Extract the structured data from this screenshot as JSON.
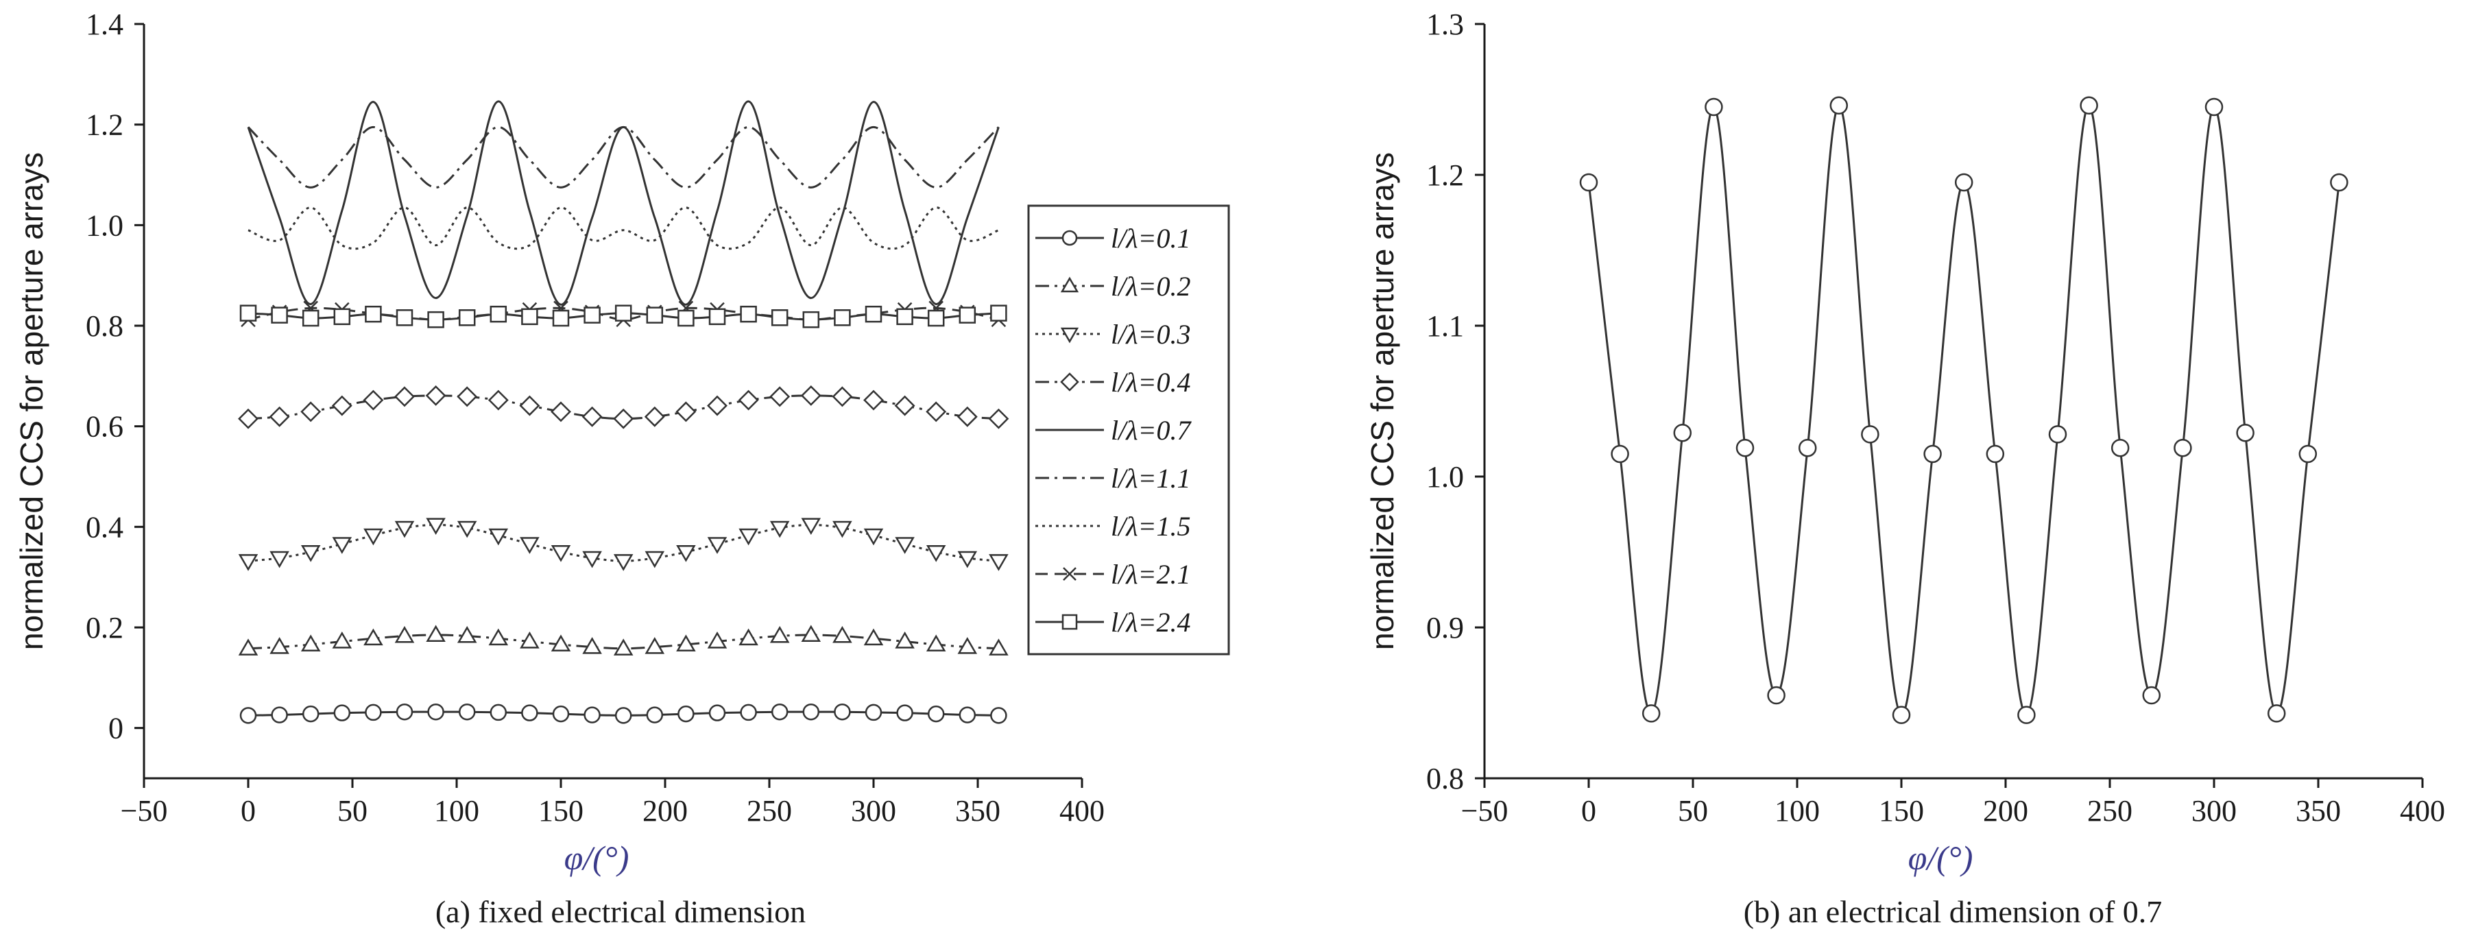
{
  "chart_data": [
    {
      "type": "line",
      "caption": "(a) fixed electrical dimension",
      "xlabel": "φ/(°)",
      "ylabel": "normalized CCS for aperture arrays",
      "xlim": [
        -50,
        400
      ],
      "ylim": [
        -0.1,
        1.4
      ],
      "xticks": [
        -50,
        0,
        50,
        100,
        150,
        200,
        250,
        300,
        350,
        400
      ],
      "yticks": [
        0,
        0.2,
        0.4,
        0.6,
        0.8,
        1.0,
        1.2,
        1.4
      ],
      "ytick_labels": [
        "0",
        "0.2",
        "0.4",
        "0.6",
        "0.8",
        "1.0",
        "1.2",
        "1.4"
      ],
      "legend_position": "right",
      "x": [
        0,
        15,
        30,
        45,
        60,
        75,
        90,
        105,
        120,
        135,
        150,
        165,
        180,
        195,
        210,
        225,
        240,
        255,
        270,
        285,
        300,
        315,
        330,
        345,
        360
      ],
      "series": [
        {
          "name": "l/λ=0.1",
          "marker": "circle",
          "dash": "solid",
          "values": [
            0.025,
            0.026,
            0.028,
            0.03,
            0.031,
            0.032,
            0.032,
            0.032,
            0.031,
            0.03,
            0.028,
            0.026,
            0.025,
            0.026,
            0.028,
            0.03,
            0.031,
            0.032,
            0.032,
            0.032,
            0.031,
            0.03,
            0.028,
            0.026,
            0.025
          ]
        },
        {
          "name": "l/λ=0.2",
          "marker": "triangle-up",
          "dash": "dashdot",
          "values": [
            0.158,
            0.161,
            0.166,
            0.172,
            0.178,
            0.183,
            0.185,
            0.183,
            0.178,
            0.172,
            0.166,
            0.161,
            0.158,
            0.161,
            0.166,
            0.172,
            0.178,
            0.183,
            0.185,
            0.183,
            0.178,
            0.172,
            0.166,
            0.161,
            0.158
          ]
        },
        {
          "name": "l/λ=0.3",
          "marker": "triangle-down",
          "dash": "dotted",
          "values": [
            0.332,
            0.338,
            0.35,
            0.366,
            0.383,
            0.398,
            0.404,
            0.398,
            0.383,
            0.366,
            0.35,
            0.338,
            0.332,
            0.338,
            0.35,
            0.366,
            0.383,
            0.398,
            0.404,
            0.398,
            0.383,
            0.366,
            0.35,
            0.338,
            0.332
          ]
        },
        {
          "name": "l/λ=0.4",
          "marker": "diamond",
          "dash": "dashdot",
          "values": [
            0.615,
            0.619,
            0.629,
            0.641,
            0.652,
            0.659,
            0.661,
            0.659,
            0.652,
            0.641,
            0.629,
            0.619,
            0.615,
            0.619,
            0.629,
            0.641,
            0.652,
            0.659,
            0.661,
            0.659,
            0.652,
            0.641,
            0.629,
            0.619,
            0.615
          ]
        },
        {
          "name": "l/λ=0.7",
          "marker": "none",
          "dash": "solid",
          "values": [
            1.195,
            1.015,
            0.843,
            1.029,
            1.245,
            1.019,
            0.855,
            1.019,
            1.246,
            1.028,
            0.842,
            1.015,
            1.195,
            1.015,
            0.842,
            1.028,
            1.246,
            1.019,
            0.855,
            1.019,
            1.245,
            1.029,
            0.843,
            1.015,
            1.195
          ]
        },
        {
          "name": "l/λ=1.1",
          "marker": "none",
          "dash": "dashdot",
          "values": [
            1.195,
            1.13,
            1.075,
            1.13,
            1.195,
            1.13,
            1.075,
            1.13,
            1.195,
            1.13,
            1.075,
            1.13,
            1.195,
            1.13,
            1.075,
            1.13,
            1.195,
            1.13,
            1.075,
            1.13,
            1.195,
            1.13,
            1.075,
            1.13,
            1.195
          ]
        },
        {
          "name": "l/λ=1.5",
          "marker": "none",
          "dash": "dotted",
          "values": [
            0.99,
            0.97,
            1.035,
            0.96,
            0.965,
            1.035,
            0.96,
            1.035,
            0.965,
            0.96,
            1.035,
            0.97,
            0.99,
            0.97,
            1.035,
            0.96,
            0.965,
            1.035,
            0.96,
            1.035,
            0.965,
            0.96,
            1.035,
            0.97,
            0.99
          ]
        },
        {
          "name": "l/λ=2.1",
          "marker": "cross",
          "dash": "dashed",
          "values": [
            0.812,
            0.827,
            0.835,
            0.832,
            0.824,
            0.818,
            0.812,
            0.818,
            0.824,
            0.832,
            0.835,
            0.827,
            0.812,
            0.827,
            0.835,
            0.832,
            0.824,
            0.818,
            0.812,
            0.818,
            0.824,
            0.832,
            0.835,
            0.827,
            0.812
          ]
        },
        {
          "name": "l/λ=2.4",
          "marker": "square",
          "dash": "solid",
          "values": [
            0.825,
            0.821,
            0.815,
            0.818,
            0.823,
            0.816,
            0.812,
            0.816,
            0.823,
            0.818,
            0.815,
            0.821,
            0.825,
            0.821,
            0.815,
            0.818,
            0.823,
            0.816,
            0.812,
            0.816,
            0.823,
            0.818,
            0.815,
            0.821,
            0.825
          ]
        }
      ]
    },
    {
      "type": "line",
      "caption": "(b) an electrical dimension of 0.7",
      "xlabel": "φ/(°)",
      "ylabel": "normalized CCS for aperture arrays",
      "xlim": [
        -50,
        400
      ],
      "ylim": [
        0.8,
        1.3
      ],
      "xticks": [
        -50,
        0,
        50,
        100,
        150,
        200,
        250,
        300,
        350,
        400
      ],
      "yticks": [
        0.8,
        0.9,
        1.0,
        1.1,
        1.2,
        1.3
      ],
      "ytick_labels": [
        "0.8",
        "0.9",
        "1.0",
        "1.1",
        "1.2",
        "1.3"
      ],
      "x": [
        0,
        15,
        30,
        45,
        60,
        75,
        90,
        105,
        120,
        135,
        150,
        165,
        180,
        195,
        210,
        225,
        240,
        255,
        270,
        285,
        300,
        315,
        330,
        345,
        360
      ],
      "series": [
        {
          "marker": "circle",
          "dash": "solid",
          "values": [
            1.195,
            1.015,
            0.843,
            1.029,
            1.245,
            1.019,
            0.855,
            1.019,
            1.246,
            1.028,
            0.842,
            1.015,
            1.195,
            1.015,
            0.842,
            1.028,
            1.246,
            1.019,
            0.855,
            1.019,
            1.245,
            1.029,
            0.843,
            1.015,
            1.195
          ]
        }
      ]
    }
  ]
}
